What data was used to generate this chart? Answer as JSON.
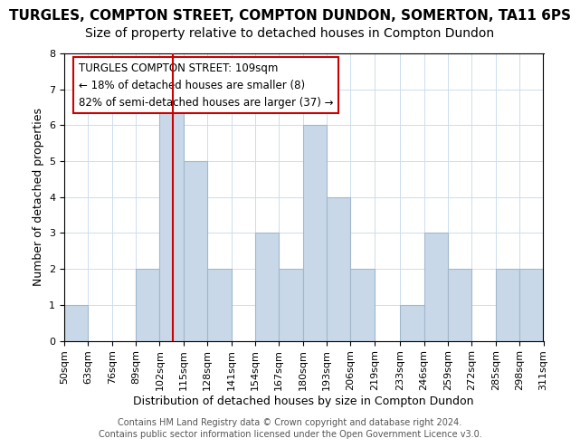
{
  "title": "TURGLES, COMPTON STREET, COMPTON DUNDON, SOMERTON, TA11 6PS",
  "subtitle": "Size of property relative to detached houses in Compton Dundon",
  "xlabel": "Distribution of detached houses by size in Compton Dundon",
  "ylabel": "Number of detached properties",
  "bin_edges": [
    50,
    63,
    76,
    89,
    102,
    115,
    128,
    141,
    154,
    167,
    180,
    193,
    206,
    219,
    233,
    246,
    259,
    272,
    285,
    298,
    311
  ],
  "counts": [
    1,
    0,
    0,
    2,
    7,
    5,
    2,
    0,
    3,
    2,
    6,
    4,
    2,
    0,
    1,
    3,
    2,
    0,
    2,
    2
  ],
  "bar_color": "#c8d8e8",
  "bar_edgecolor": "#a0b8cc",
  "marker_value": 109,
  "marker_color": "#cc0000",
  "ylim": [
    0,
    8
  ],
  "yticks": [
    0,
    1,
    2,
    3,
    4,
    5,
    6,
    7,
    8
  ],
  "tick_labels": [
    "50sqm",
    "63sqm",
    "76sqm",
    "89sqm",
    "102sqm",
    "115sqm",
    "128sqm",
    "141sqm",
    "154sqm",
    "167sqm",
    "180sqm",
    "193sqm",
    "206sqm",
    "219sqm",
    "233sqm",
    "246sqm",
    "259sqm",
    "272sqm",
    "285sqm",
    "298sqm",
    "311sqm"
  ],
  "annotation_title": "TURGLES COMPTON STREET: 109sqm",
  "annotation_line1": "← 18% of detached houses are smaller (8)",
  "annotation_line2": "82% of semi-detached houses are larger (37) →",
  "footer1": "Contains HM Land Registry data © Crown copyright and database right 2024.",
  "footer2": "Contains public sector information licensed under the Open Government Licence v3.0.",
  "title_fontsize": 11,
  "subtitle_fontsize": 10,
  "axis_label_fontsize": 9,
  "tick_fontsize": 8,
  "annotation_fontsize": 8.5,
  "footer_fontsize": 7
}
